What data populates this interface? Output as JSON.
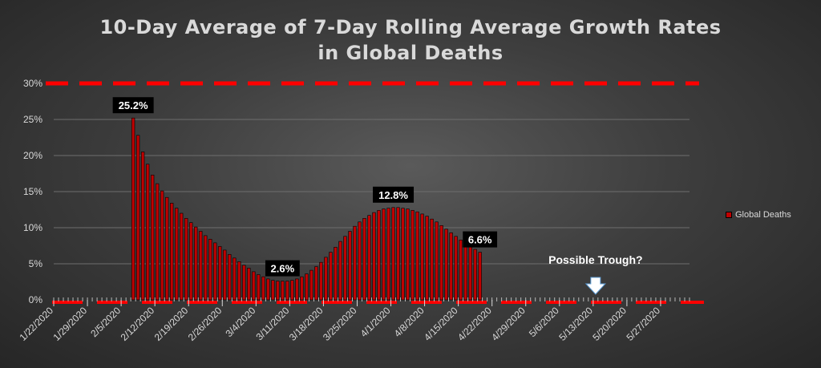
{
  "chart_data": {
    "type": "bar",
    "title": "10-Day Average of 7-Day Rolling Average Growth Rates in Global Deaths",
    "title_lines": [
      "10-Day Average of 7-Day Rolling Average Growth Rates",
      "in Global Deaths"
    ],
    "ylim": [
      0,
      30
    ],
    "yticks": [
      "0%",
      "5%",
      "10%",
      "15%",
      "20%",
      "25%",
      "30%"
    ],
    "x_start": "2020-01-22",
    "x_end": "2020-06-02",
    "xtick_labels": [
      "1/22/2020",
      "1/29/2020",
      "2/5/2020",
      "2/12/2020",
      "2/19/2020",
      "2/26/2020",
      "3/4/2020",
      "3/11/2020",
      "3/18/2020",
      "3/25/2020",
      "4/1/2020",
      "4/8/2020",
      "4/15/2020",
      "4/22/2020",
      "4/29/2020",
      "5/6/2020",
      "5/13/2020",
      "5/20/2020",
      "5/27/2020"
    ],
    "grid": true,
    "legend_position": "right",
    "series": [
      {
        "name": "Global Deaths",
        "color": "#c00000",
        "values": [
          {
            "x": "2020-02-07",
            "y": 25.2
          },
          {
            "x": "2020-02-08",
            "y": 22.8
          },
          {
            "x": "2020-02-09",
            "y": 20.5
          },
          {
            "x": "2020-02-10",
            "y": 18.8
          },
          {
            "x": "2020-02-11",
            "y": 17.3
          },
          {
            "x": "2020-02-12",
            "y": 16.1
          },
          {
            "x": "2020-02-13",
            "y": 15.1
          },
          {
            "x": "2020-02-14",
            "y": 14.2
          },
          {
            "x": "2020-02-15",
            "y": 13.4
          },
          {
            "x": "2020-02-16",
            "y": 12.7
          },
          {
            "x": "2020-02-17",
            "y": 12.0
          },
          {
            "x": "2020-02-18",
            "y": 11.3
          },
          {
            "x": "2020-02-19",
            "y": 10.7
          },
          {
            "x": "2020-02-20",
            "y": 10.1
          },
          {
            "x": "2020-02-21",
            "y": 9.5
          },
          {
            "x": "2020-02-22",
            "y": 8.9
          },
          {
            "x": "2020-02-23",
            "y": 8.4
          },
          {
            "x": "2020-02-24",
            "y": 7.9
          },
          {
            "x": "2020-02-25",
            "y": 7.4
          },
          {
            "x": "2020-02-26",
            "y": 6.9
          },
          {
            "x": "2020-02-27",
            "y": 6.3
          },
          {
            "x": "2020-02-28",
            "y": 5.8
          },
          {
            "x": "2020-02-29",
            "y": 5.3
          },
          {
            "x": "2020-03-01",
            "y": 4.8
          },
          {
            "x": "2020-03-02",
            "y": 4.4
          },
          {
            "x": "2020-03-03",
            "y": 3.9
          },
          {
            "x": "2020-03-04",
            "y": 3.5
          },
          {
            "x": "2020-03-05",
            "y": 3.2
          },
          {
            "x": "2020-03-06",
            "y": 2.9
          },
          {
            "x": "2020-03-07",
            "y": 2.7
          },
          {
            "x": "2020-03-08",
            "y": 2.6
          },
          {
            "x": "2020-03-09",
            "y": 2.6
          },
          {
            "x": "2020-03-10",
            "y": 2.6
          },
          {
            "x": "2020-03-11",
            "y": 2.7
          },
          {
            "x": "2020-03-12",
            "y": 2.9
          },
          {
            "x": "2020-03-13",
            "y": 3.2
          },
          {
            "x": "2020-03-14",
            "y": 3.6
          },
          {
            "x": "2020-03-15",
            "y": 4.1
          },
          {
            "x": "2020-03-16",
            "y": 4.6
          },
          {
            "x": "2020-03-17",
            "y": 5.2
          },
          {
            "x": "2020-03-18",
            "y": 5.9
          },
          {
            "x": "2020-03-19",
            "y": 6.6
          },
          {
            "x": "2020-03-20",
            "y": 7.3
          },
          {
            "x": "2020-03-21",
            "y": 8.1
          },
          {
            "x": "2020-03-22",
            "y": 8.8
          },
          {
            "x": "2020-03-23",
            "y": 9.5
          },
          {
            "x": "2020-03-24",
            "y": 10.2
          },
          {
            "x": "2020-03-25",
            "y": 10.8
          },
          {
            "x": "2020-03-26",
            "y": 11.3
          },
          {
            "x": "2020-03-27",
            "y": 11.7
          },
          {
            "x": "2020-03-28",
            "y": 12.1
          },
          {
            "x": "2020-03-29",
            "y": 12.4
          },
          {
            "x": "2020-03-30",
            "y": 12.6
          },
          {
            "x": "2020-03-31",
            "y": 12.7
          },
          {
            "x": "2020-04-01",
            "y": 12.8
          },
          {
            "x": "2020-04-02",
            "y": 12.8
          },
          {
            "x": "2020-04-03",
            "y": 12.7
          },
          {
            "x": "2020-04-04",
            "y": 12.6
          },
          {
            "x": "2020-04-05",
            "y": 12.4
          },
          {
            "x": "2020-04-06",
            "y": 12.2
          },
          {
            "x": "2020-04-07",
            "y": 11.9
          },
          {
            "x": "2020-04-08",
            "y": 11.6
          },
          {
            "x": "2020-04-09",
            "y": 11.2
          },
          {
            "x": "2020-04-10",
            "y": 10.8
          },
          {
            "x": "2020-04-11",
            "y": 10.3
          },
          {
            "x": "2020-04-12",
            "y": 9.8
          },
          {
            "x": "2020-04-13",
            "y": 9.3
          },
          {
            "x": "2020-04-14",
            "y": 8.8
          },
          {
            "x": "2020-04-15",
            "y": 8.3
          },
          {
            "x": "2020-04-16",
            "y": 7.8
          },
          {
            "x": "2020-04-17",
            "y": 7.4
          },
          {
            "x": "2020-04-18",
            "y": 7.0
          },
          {
            "x": "2020-04-19",
            "y": 6.6
          }
        ]
      }
    ],
    "reference_line": {
      "y": 30,
      "color": "#ff0000",
      "style": "dashed"
    },
    "baseline_line": {
      "y": 0,
      "color": "#ff0000",
      "style": "dashed"
    },
    "annotations": [
      {
        "text": "25.2%",
        "x": "2020-02-07",
        "y": 25.2
      },
      {
        "text": "2.6%",
        "x": "2020-03-09",
        "y": 2.6
      },
      {
        "text": "12.8%",
        "x": "2020-04-01",
        "y": 12.8
      },
      {
        "text": "6.6%",
        "x": "2020-04-19",
        "y": 6.6
      },
      {
        "text": "Possible Trough?",
        "x": "2020-05-13",
        "y": 0,
        "arrow": true
      }
    ]
  }
}
